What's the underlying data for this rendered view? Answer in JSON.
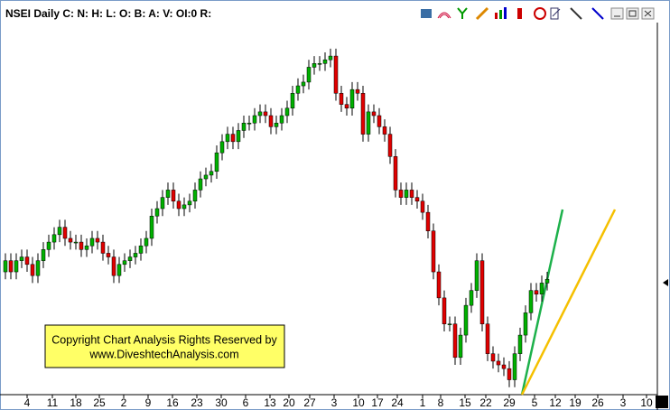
{
  "chart_data": {
    "type": "candlestick",
    "title": "NSEI Daily C: N: H: L: O: B: A: V: OI:0 R:",
    "annotation": [
      "Copyright Chart Analysis Rights Reserved by",
      "www.DiveshtechAnalysis.com"
    ],
    "x_labels": [
      "4",
      "11",
      "18",
      "25",
      "2",
      "9",
      "16",
      "23",
      "30",
      "6",
      "13",
      "20",
      "27",
      "3",
      "10",
      "17",
      "24",
      "1",
      "8",
      "15",
      "22",
      "29",
      "5",
      "12",
      "19",
      "26",
      "3",
      "10"
    ],
    "ylim": [
      0,
      100
    ],
    "up_color": "#00b000",
    "down_color": "#e00000",
    "open": [
      33,
      36,
      33,
      36,
      37,
      35,
      32,
      36,
      39,
      41,
      43,
      45,
      42,
      41,
      41,
      39,
      40,
      42,
      41,
      38,
      37,
      32,
      35,
      36,
      37,
      38,
      40,
      42,
      48,
      50,
      53,
      55,
      52,
      50,
      51,
      52,
      55,
      58,
      59,
      60,
      65,
      68,
      70,
      68,
      71,
      73,
      73,
      75,
      76,
      75,
      72,
      73,
      75,
      77,
      81,
      83,
      84,
      88,
      89,
      89,
      90,
      91,
      81,
      78,
      77,
      82,
      81,
      70,
      76,
      75,
      72,
      70,
      64,
      55,
      53,
      55,
      53,
      52,
      49,
      44,
      33,
      26,
      19,
      19,
      10,
      16,
      24,
      28,
      36,
      19,
      11,
      9,
      8,
      7,
      4,
      11,
      16,
      22,
      28,
      27,
      30
    ],
    "high": [
      38,
      38,
      38,
      39,
      39,
      37,
      38,
      41,
      43,
      45,
      47,
      47,
      44,
      43,
      43,
      42,
      44,
      44,
      43,
      40,
      39,
      37,
      38,
      39,
      40,
      42,
      44,
      50,
      52,
      55,
      57,
      57,
      54,
      53,
      54,
      57,
      60,
      61,
      62,
      67,
      70,
      72,
      72,
      73,
      75,
      75,
      77,
      78,
      78,
      77,
      75,
      77,
      79,
      83,
      85,
      86,
      90,
      91,
      91,
      92,
      93,
      93,
      83,
      80,
      84,
      84,
      83,
      78,
      78,
      77,
      74,
      72,
      66,
      57,
      57,
      57,
      55,
      54,
      51,
      46,
      35,
      28,
      21,
      21,
      18,
      26,
      30,
      38,
      38,
      21,
      13,
      11,
      10,
      9,
      13,
      18,
      24,
      30,
      30,
      32,
      33
    ],
    "low": [
      31,
      31,
      31,
      34,
      33,
      30,
      30,
      34,
      37,
      39,
      41,
      40,
      39,
      39,
      37,
      37,
      38,
      39,
      36,
      35,
      30,
      30,
      33,
      34,
      35,
      36,
      38,
      40,
      46,
      48,
      51,
      50,
      48,
      48,
      49,
      50,
      53,
      56,
      57,
      58,
      63,
      66,
      66,
      66,
      69,
      71,
      71,
      73,
      73,
      70,
      70,
      71,
      73,
      75,
      79,
      81,
      82,
      86,
      87,
      87,
      88,
      79,
      76,
      75,
      75,
      79,
      68,
      68,
      73,
      70,
      68,
      62,
      53,
      51,
      51,
      51,
      50,
      47,
      42,
      31,
      24,
      17,
      17,
      8,
      8,
      14,
      22,
      26,
      17,
      9,
      7,
      6,
      5,
      2,
      2,
      9,
      14,
      20,
      25,
      25,
      28
    ],
    "close": [
      36,
      33,
      36,
      37,
      35,
      32,
      36,
      39,
      41,
      43,
      45,
      42,
      41,
      41,
      39,
      40,
      42,
      41,
      38,
      37,
      32,
      35,
      36,
      37,
      38,
      40,
      42,
      48,
      50,
      53,
      55,
      52,
      50,
      51,
      52,
      55,
      58,
      59,
      60,
      65,
      68,
      70,
      68,
      71,
      73,
      73,
      75,
      76,
      75,
      72,
      73,
      75,
      77,
      81,
      83,
      84,
      88,
      89,
      89,
      90,
      91,
      81,
      78,
      77,
      82,
      81,
      70,
      76,
      75,
      72,
      70,
      64,
      55,
      53,
      55,
      53,
      52,
      49,
      44,
      33,
      26,
      19,
      19,
      10,
      16,
      24,
      28,
      36,
      19,
      11,
      9,
      8,
      7,
      4,
      11,
      16,
      22,
      28,
      27,
      30,
      31
    ]
  }
}
